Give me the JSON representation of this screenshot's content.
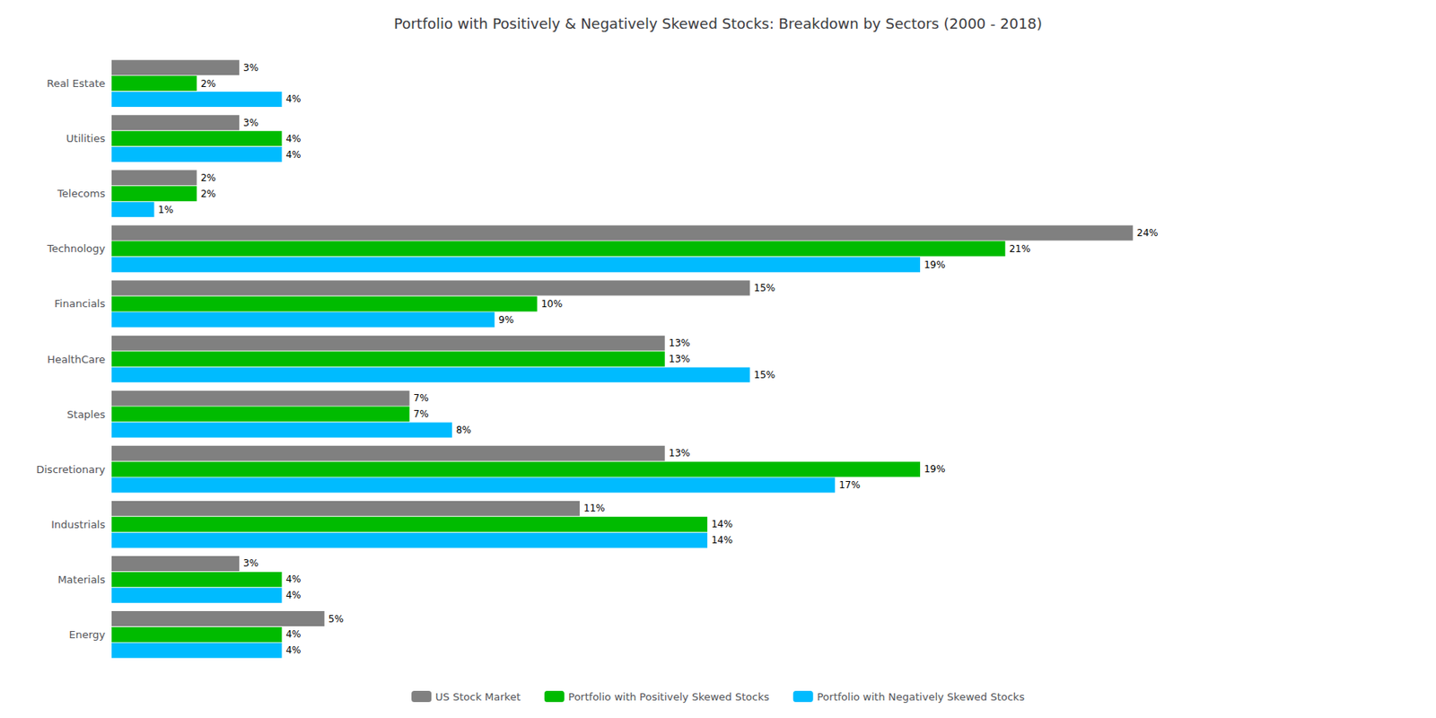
{
  "chart_data": {
    "type": "bar",
    "orientation": "horizontal",
    "title": "Portfolio with Positively & Negatively Skewed Stocks: Breakdown by Sectors (2000 - 2018)",
    "categories": [
      "Real Estate",
      "Utilities",
      "Telecoms",
      "Technology",
      "Financials",
      "HealthCare",
      "Staples",
      "Discretionary",
      "Industrials",
      "Materials",
      "Energy"
    ],
    "series": [
      {
        "name": "US Stock Market",
        "color": "#808080",
        "values": [
          3,
          3,
          2,
          24,
          15,
          13,
          7,
          13,
          11,
          3,
          5
        ],
        "value_labels": [
          "3%",
          "3%",
          "2%",
          "24%",
          "15%",
          "13%",
          "7%",
          "13%",
          "11%",
          "3%",
          "5%"
        ]
      },
      {
        "name": "Portfolio with Positively Skewed Stocks",
        "color": "#00bb00",
        "values": [
          2,
          4,
          2,
          21,
          10,
          13,
          7,
          19,
          14,
          4,
          4
        ],
        "value_labels": [
          "2%",
          "4%",
          "2%",
          "21%",
          "10%",
          "13%",
          "7%",
          "19%",
          "14%",
          "4%",
          "4%"
        ]
      },
      {
        "name": "Portfolio with Negatively Skewed Stocks",
        "color": "#00bbff",
        "values": [
          4,
          4,
          1,
          19,
          9,
          15,
          8,
          17,
          14,
          4,
          4
        ],
        "value_labels": [
          "4%",
          "4%",
          "1%",
          "19%",
          "9%",
          "15%",
          "8%",
          "17%",
          "14%",
          "4%",
          "4%"
        ]
      }
    ],
    "xlim": [
      0,
      30
    ],
    "data_labels": true,
    "tick_labels": "y",
    "grid": false,
    "legend": "bottom"
  }
}
